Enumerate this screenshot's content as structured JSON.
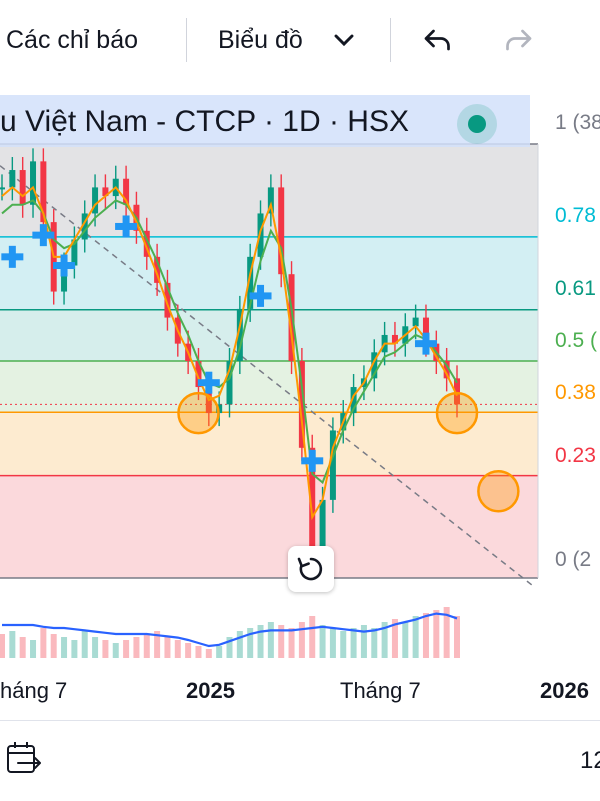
{
  "toolbar": {
    "indicators_label": "Các chỉ báo",
    "chart_type_label": "Biểu đồ",
    "undo_icon": "undo-icon",
    "redo_icon": "redo-icon"
  },
  "symbol": {
    "text": "u Việt Nam - CTCP · 1D · HSX",
    "status_color": "#089981"
  },
  "fib_labels": [
    "1 (38",
    "0.78",
    "0.61",
    "0.5 (",
    "0.38",
    "0.23",
    "0 (2"
  ],
  "time_labels": {
    "t1": "háng 7",
    "t2": "2025",
    "t3": "Tháng 7",
    "t4": "2026"
  },
  "bottom_bar": {
    "calendar_icon": "calendar-goto-icon",
    "right_text": "12"
  },
  "colors": {
    "up": "#089981",
    "down": "#f23645",
    "ma_fast": "#ff9800",
    "ma_slow": "#4caf50",
    "volume_line": "#2962ff",
    "marker": "#2196f3",
    "circle": "#ff9800"
  },
  "chart_data": {
    "type": "line",
    "x_ticks": [
      "háng 7",
      "2025",
      "Tháng 7",
      "2026"
    ],
    "fib_levels": [
      {
        "label": "1 (38",
        "ratio": 1.0,
        "color": "#787b86"
      },
      {
        "label": "0.78",
        "ratio": 0.786,
        "color": "#00bcd4"
      },
      {
        "label": "0.61",
        "ratio": 0.618,
        "color": "#089981"
      },
      {
        "label": "0.5 (",
        "ratio": 0.5,
        "color": "#4caf50"
      },
      {
        "label": "0.38",
        "ratio": 0.382,
        "color": "#ff9800"
      },
      {
        "label": "0.23",
        "ratio": 0.236,
        "color": "#f23645"
      },
      {
        "label": "0 (2",
        "ratio": 0.0,
        "color": "#787b86"
      }
    ],
    "price_ratio": [
      0.9,
      0.94,
      0.86,
      0.96,
      0.82,
      0.66,
      0.72,
      0.78,
      0.84,
      0.9,
      0.88,
      0.92,
      0.86,
      0.8,
      0.74,
      0.68,
      0.6,
      0.54,
      0.5,
      0.44,
      0.38,
      0.4,
      0.5,
      0.62,
      0.74,
      0.84,
      0.9,
      0.7,
      0.5,
      0.3,
      0.06,
      0.18,
      0.34,
      0.38,
      0.44,
      0.46,
      0.52,
      0.56,
      0.54,
      0.58,
      0.6,
      0.54,
      0.5,
      0.46,
      0.4
    ],
    "ma_fast_ratio": [
      0.88,
      0.9,
      0.88,
      0.9,
      0.84,
      0.74,
      0.74,
      0.78,
      0.82,
      0.86,
      0.88,
      0.9,
      0.87,
      0.82,
      0.76,
      0.7,
      0.63,
      0.57,
      0.52,
      0.46,
      0.41,
      0.42,
      0.48,
      0.58,
      0.7,
      0.8,
      0.86,
      0.74,
      0.56,
      0.36,
      0.14,
      0.18,
      0.3,
      0.36,
      0.42,
      0.45,
      0.5,
      0.54,
      0.54,
      0.56,
      0.58,
      0.55,
      0.51,
      0.47,
      0.42
    ],
    "ma_slow_ratio": [
      0.84,
      0.86,
      0.86,
      0.87,
      0.84,
      0.78,
      0.76,
      0.77,
      0.8,
      0.83,
      0.85,
      0.87,
      0.86,
      0.83,
      0.78,
      0.73,
      0.67,
      0.61,
      0.56,
      0.5,
      0.45,
      0.44,
      0.46,
      0.53,
      0.63,
      0.73,
      0.8,
      0.76,
      0.62,
      0.44,
      0.24,
      0.22,
      0.28,
      0.34,
      0.39,
      0.43,
      0.47,
      0.51,
      0.52,
      0.54,
      0.56,
      0.55,
      0.52,
      0.49,
      0.45
    ],
    "volume_ratio": [
      0.4,
      0.45,
      0.35,
      0.3,
      0.5,
      0.4,
      0.35,
      0.3,
      0.45,
      0.35,
      0.3,
      0.25,
      0.3,
      0.35,
      0.4,
      0.45,
      0.35,
      0.3,
      0.25,
      0.2,
      0.15,
      0.2,
      0.35,
      0.45,
      0.5,
      0.55,
      0.6,
      0.55,
      0.5,
      0.6,
      0.7,
      0.55,
      0.5,
      0.45,
      0.5,
      0.55,
      0.5,
      0.6,
      0.65,
      0.6,
      0.7,
      0.75,
      0.8,
      0.85,
      0.7
    ],
    "volume_line_ratio": [
      0.55,
      0.55,
      0.55,
      0.55,
      0.52,
      0.5,
      0.5,
      0.48,
      0.46,
      0.44,
      0.42,
      0.4,
      0.4,
      0.4,
      0.4,
      0.38,
      0.36,
      0.34,
      0.3,
      0.25,
      0.2,
      0.22,
      0.28,
      0.34,
      0.4,
      0.44,
      0.46,
      0.46,
      0.46,
      0.48,
      0.5,
      0.52,
      0.5,
      0.48,
      0.46,
      0.44,
      0.46,
      0.5,
      0.56,
      0.6,
      0.64,
      0.7,
      0.74,
      0.72,
      0.66
    ],
    "markers": [
      {
        "kind": "plus",
        "i": 1,
        "ratio": 0.74
      },
      {
        "kind": "plus",
        "i": 4,
        "ratio": 0.79
      },
      {
        "kind": "plus",
        "i": 6,
        "ratio": 0.72
      },
      {
        "kind": "plus",
        "i": 12,
        "ratio": 0.81
      },
      {
        "kind": "plus",
        "i": 20,
        "ratio": 0.45
      },
      {
        "kind": "plus",
        "i": 25,
        "ratio": 0.65
      },
      {
        "kind": "plus",
        "i": 30,
        "ratio": 0.27
      },
      {
        "kind": "plus",
        "i": 41,
        "ratio": 0.54
      },
      {
        "kind": "circle",
        "i": 19,
        "ratio": 0.38
      },
      {
        "kind": "circle",
        "i": 44,
        "ratio": 0.38
      },
      {
        "kind": "circle",
        "i": 48,
        "ratio": 0.2
      }
    ]
  }
}
